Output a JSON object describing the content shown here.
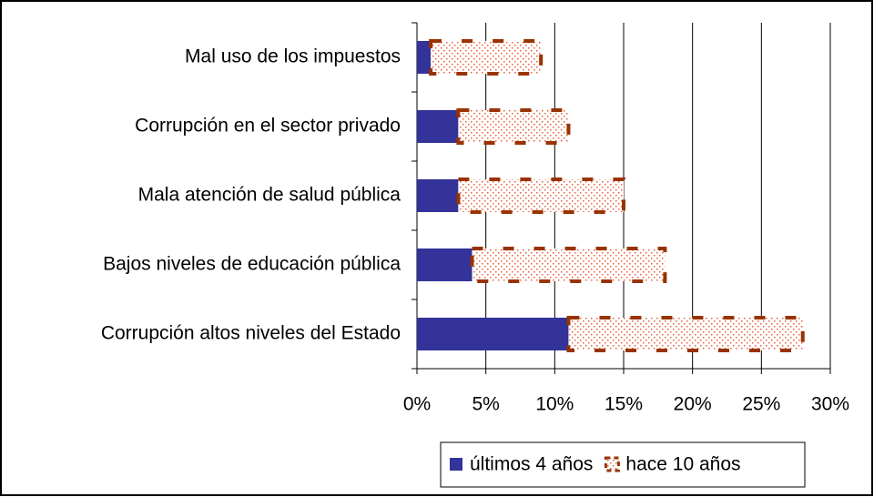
{
  "chart_data": {
    "type": "stacked-bar-horizontal",
    "categories": [
      "Mal uso de los impuestos",
      "Corrupción en el sector privado",
      "Mala atención de salud pública",
      "Bajos niveles de educación pública",
      "Corrupción  altos niveles del Estado"
    ],
    "series": [
      {
        "name": "últimos 4 años",
        "color": "#333399",
        "values": [
          1,
          3,
          3,
          4,
          11
        ]
      },
      {
        "name": "hace 10 años",
        "color": "#993300",
        "values": [
          8,
          8,
          12,
          14,
          17
        ]
      }
    ],
    "xlim": [
      0,
      30
    ],
    "xticks": [
      {
        "value": 0,
        "label": "0%"
      },
      {
        "value": 5,
        "label": "5%"
      },
      {
        "value": 10,
        "label": "10%"
      },
      {
        "value": 15,
        "label": "15%"
      },
      {
        "value": 20,
        "label": "20%"
      },
      {
        "value": 25,
        "label": "25%"
      },
      {
        "value": 30,
        "label": "30%"
      }
    ],
    "grid": true,
    "legend": "bottom"
  }
}
